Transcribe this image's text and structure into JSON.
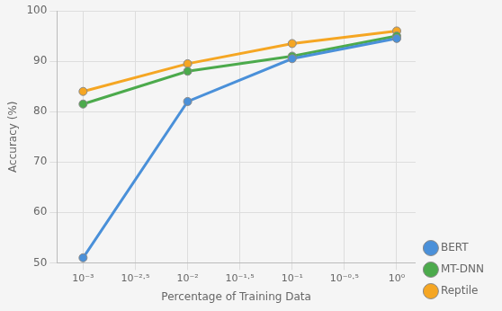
{
  "chart_data": {
    "type": "line",
    "x": [
      0.001,
      0.01,
      0.1,
      1.0
    ],
    "series": [
      {
        "name": "BERT",
        "color": "#4a90d9",
        "marker": "circle",
        "values": [
          51.0,
          82.0,
          90.5,
          94.5
        ]
      },
      {
        "name": "MT-DNN",
        "color": "#4caa4c",
        "marker": "circle",
        "values": [
          81.5,
          88.0,
          91.0,
          95.0
        ]
      },
      {
        "name": "Reptile",
        "color": "#f5a623",
        "marker": "circle",
        "values": [
          84.0,
          89.5,
          93.5,
          96.0
        ]
      }
    ],
    "xlabel": "Percentage of Training Data",
    "ylabel": "Accuracy (%)",
    "log": "x",
    "xlim": [
      0.000562341325190349,
      1.5135612484362082
    ],
    "xticks": [
      {
        "value": 0.001,
        "label": "10⁻³"
      },
      {
        "value": 0.0031622776601683794,
        "label": "10⁻²·⁵"
      },
      {
        "value": 0.01,
        "label": "10⁻²"
      },
      {
        "value": 0.03162277660168379,
        "label": "10⁻¹·⁵"
      },
      {
        "value": 0.1,
        "label": "10⁻¹"
      },
      {
        "value": 0.31622776601683794,
        "label": "10⁻⁰·⁵"
      },
      {
        "value": 1.0,
        "label": "10⁰"
      }
    ],
    "ylim": [
      50,
      100
    ],
    "yticks": [
      50,
      60,
      70,
      80,
      90,
      100
    ],
    "grid": true,
    "legend": "lower right"
  }
}
